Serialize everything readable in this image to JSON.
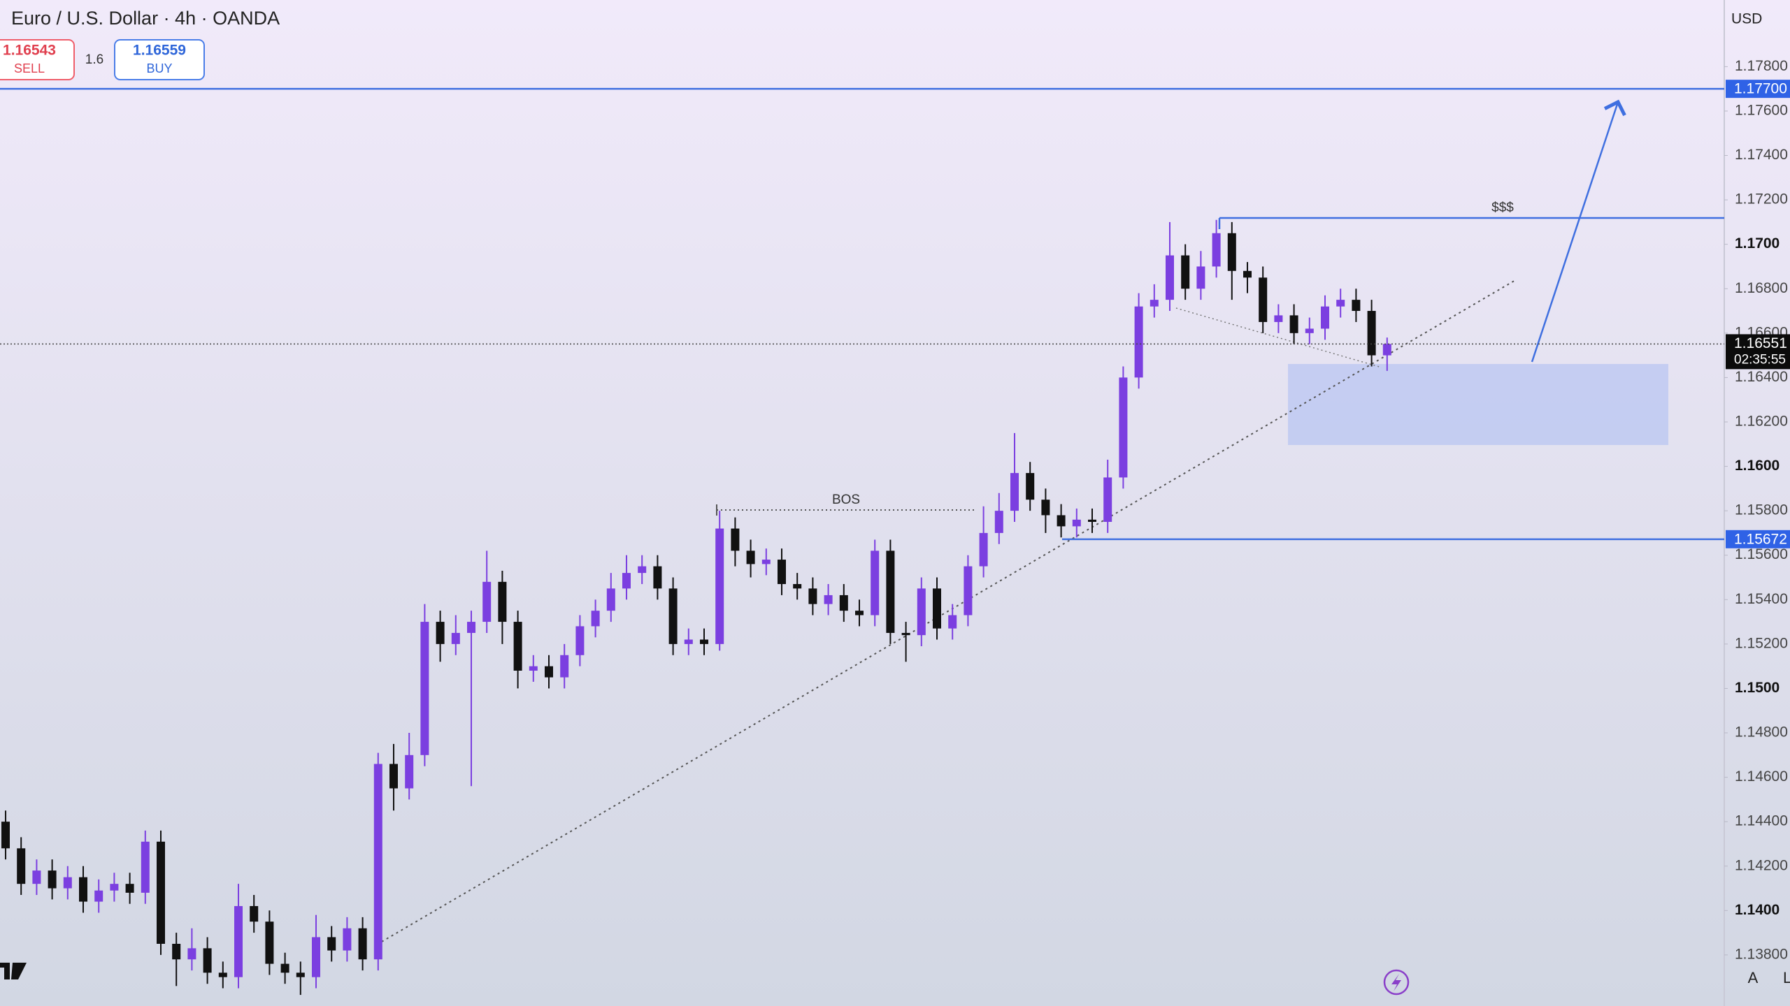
{
  "chart_data": {
    "type": "candlestick",
    "title": "Euro / U.S. Dollar · 4h · OANDA",
    "currency": "USD",
    "up_color": "#7b3fe0",
    "down_color": "#111111",
    "ylim": [
      1.1357,
      1.181
    ],
    "yticks": [
      {
        "value": 1.138,
        "label": "1.13800"
      },
      {
        "value": 1.14,
        "label": "1.1400"
      },
      {
        "value": 1.142,
        "label": "1.14200"
      },
      {
        "value": 1.144,
        "label": "1.14400"
      },
      {
        "value": 1.146,
        "label": "1.14600"
      },
      {
        "value": 1.148,
        "label": "1.14800"
      },
      {
        "value": 1.15,
        "label": "1.1500"
      },
      {
        "value": 1.152,
        "label": "1.15200"
      },
      {
        "value": 1.154,
        "label": "1.15400"
      },
      {
        "value": 1.156,
        "label": "1.15600"
      },
      {
        "value": 1.158,
        "label": "1.15800"
      },
      {
        "value": 1.16,
        "label": "1.1600"
      },
      {
        "value": 1.162,
        "label": "1.16200"
      },
      {
        "value": 1.164,
        "label": "1.16400"
      },
      {
        "value": 1.166,
        "label": "1.16600"
      },
      {
        "value": 1.168,
        "label": "1.16800"
      },
      {
        "value": 1.17,
        "label": "1.1700"
      },
      {
        "value": 1.172,
        "label": "1.17200"
      },
      {
        "value": 1.174,
        "label": "1.17400"
      },
      {
        "value": 1.176,
        "label": "1.17600"
      },
      {
        "value": 1.178,
        "label": "1.17800"
      }
    ],
    "price_labels": [
      {
        "value": 1.177,
        "label": "1.17700"
      },
      {
        "value": 1.15672,
        "label": "1.15672"
      }
    ],
    "last_price": {
      "value": 1.16551,
      "label": "1.16551",
      "countdown": "02:35:55"
    },
    "open": [
      1.144,
      1.1428,
      1.1412,
      1.1418,
      1.141,
      1.1415,
      1.1404,
      1.1409,
      1.1412,
      1.1408,
      1.1431,
      1.1385,
      1.1378,
      1.1383,
      1.1372,
      1.137,
      1.1402,
      1.1395,
      1.1376,
      1.1372,
      1.137,
      1.1388,
      1.1382,
      1.1392,
      1.1378,
      1.1466,
      1.1455,
      1.147,
      1.153,
      1.152,
      1.1525,
      1.153,
      1.1548,
      1.153,
      1.1508,
      1.151,
      1.1505,
      1.1515,
      1.1528,
      1.1535,
      1.1545,
      1.1552,
      1.1555,
      1.1545,
      1.152,
      1.1522,
      1.152,
      1.1572,
      1.1562,
      1.1556,
      1.1558,
      1.1547,
      1.1545,
      1.1538,
      1.1542,
      1.1535,
      1.1533,
      1.1562,
      1.1525,
      1.1524,
      1.1545,
      1.1527,
      1.1533,
      1.1555,
      1.157,
      1.158,
      1.1597,
      1.1585,
      1.1578,
      1.1573,
      1.1576,
      1.1575,
      1.1595,
      1.164,
      1.1672,
      1.1675,
      1.1695,
      1.168,
      1.169,
      1.1705,
      1.1688,
      1.1685,
      1.1665,
      1.1668,
      1.166,
      1.1662,
      1.1672,
      1.1675,
      1.167,
      1.165
    ],
    "high": [
      1.1445,
      1.1433,
      1.1423,
      1.1423,
      1.142,
      1.142,
      1.1414,
      1.1417,
      1.1417,
      1.1436,
      1.1436,
      1.139,
      1.1392,
      1.1388,
      1.1377,
      1.1412,
      1.1407,
      1.14,
      1.1381,
      1.1377,
      1.1398,
      1.1393,
      1.1397,
      1.1397,
      1.1471,
      1.1475,
      1.148,
      1.1538,
      1.1535,
      1.1533,
      1.1535,
      1.1562,
      1.1553,
      1.1535,
      1.1515,
      1.1515,
      1.152,
      1.1533,
      1.154,
      1.1552,
      1.156,
      1.156,
      1.156,
      1.155,
      1.1527,
      1.1527,
      1.158,
      1.1577,
      1.1567,
      1.1563,
      1.1563,
      1.1552,
      1.155,
      1.1547,
      1.1547,
      1.154,
      1.1567,
      1.1567,
      1.153,
      1.155,
      1.155,
      1.1538,
      1.156,
      1.1582,
      1.1588,
      1.1615,
      1.1602,
      1.159,
      1.1583,
      1.1581,
      1.1581,
      1.1603,
      1.1645,
      1.1678,
      1.1682,
      1.171,
      1.17,
      1.1697,
      1.1711,
      1.171,
      1.1692,
      1.169,
      1.1673,
      1.1673,
      1.1667,
      1.1677,
      1.168,
      1.168,
      1.1675,
      1.1658
    ],
    "low": [
      1.1423,
      1.1407,
      1.1407,
      1.1405,
      1.1405,
      1.1399,
      1.1399,
      1.1404,
      1.1403,
      1.1403,
      1.138,
      1.1366,
      1.1373,
      1.1367,
      1.1365,
      1.1365,
      1.139,
      1.1371,
      1.1367,
      1.1362,
      1.1365,
      1.1377,
      1.1377,
      1.1373,
      1.1373,
      1.1445,
      1.145,
      1.1465,
      1.1512,
      1.1515,
      1.1456,
      1.1525,
      1.152,
      1.15,
      1.1503,
      1.15,
      1.15,
      1.151,
      1.1523,
      1.153,
      1.154,
      1.1547,
      1.154,
      1.1515,
      1.1515,
      1.1515,
      1.1517,
      1.1555,
      1.155,
      1.1551,
      1.1542,
      1.154,
      1.1533,
      1.1533,
      1.153,
      1.1528,
      1.1528,
      1.152,
      1.1512,
      1.1519,
      1.1522,
      1.1522,
      1.1528,
      1.155,
      1.1565,
      1.1575,
      1.158,
      1.157,
      1.1568,
      1.1568,
      1.157,
      1.157,
      1.159,
      1.1635,
      1.1667,
      1.167,
      1.1675,
      1.1675,
      1.1685,
      1.1675,
      1.1678,
      1.166,
      1.166,
      1.1655,
      1.1655,
      1.1657,
      1.1667,
      1.1665,
      1.1645,
      1.1643
    ],
    "close": [
      1.1428,
      1.1412,
      1.1418,
      1.141,
      1.1415,
      1.1404,
      1.1409,
      1.1412,
      1.1408,
      1.1431,
      1.1385,
      1.1378,
      1.1383,
      1.1372,
      1.137,
      1.1402,
      1.1395,
      1.1376,
      1.1372,
      1.137,
      1.1388,
      1.1382,
      1.1392,
      1.1378,
      1.1466,
      1.1455,
      1.147,
      1.153,
      1.152,
      1.1525,
      1.153,
      1.1548,
      1.153,
      1.1508,
      1.151,
      1.1505,
      1.1515,
      1.1528,
      1.1535,
      1.1545,
      1.1552,
      1.1555,
      1.1545,
      1.152,
      1.1522,
      1.152,
      1.1572,
      1.1562,
      1.1556,
      1.1558,
      1.1547,
      1.1545,
      1.1538,
      1.1542,
      1.1535,
      1.1533,
      1.1562,
      1.1525,
      1.1524,
      1.1545,
      1.1527,
      1.1533,
      1.1555,
      1.157,
      1.158,
      1.1597,
      1.1585,
      1.1578,
      1.1573,
      1.1576,
      1.1575,
      1.1595,
      1.164,
      1.1672,
      1.1675,
      1.1695,
      1.168,
      1.169,
      1.1705,
      1.1688,
      1.1685,
      1.1665,
      1.1668,
      1.166,
      1.1662,
      1.1672,
      1.1675,
      1.167,
      1.165,
      1.16551
    ]
  },
  "ui": {
    "sell": {
      "price": "1.16543",
      "label": "SELL"
    },
    "spread": "1.6",
    "buy": {
      "price": "1.16559",
      "label": "BUY"
    },
    "annotations": {
      "liquidity": "$$$",
      "bos": "BOS"
    },
    "scale_buttons": [
      "A",
      "L"
    ]
  }
}
